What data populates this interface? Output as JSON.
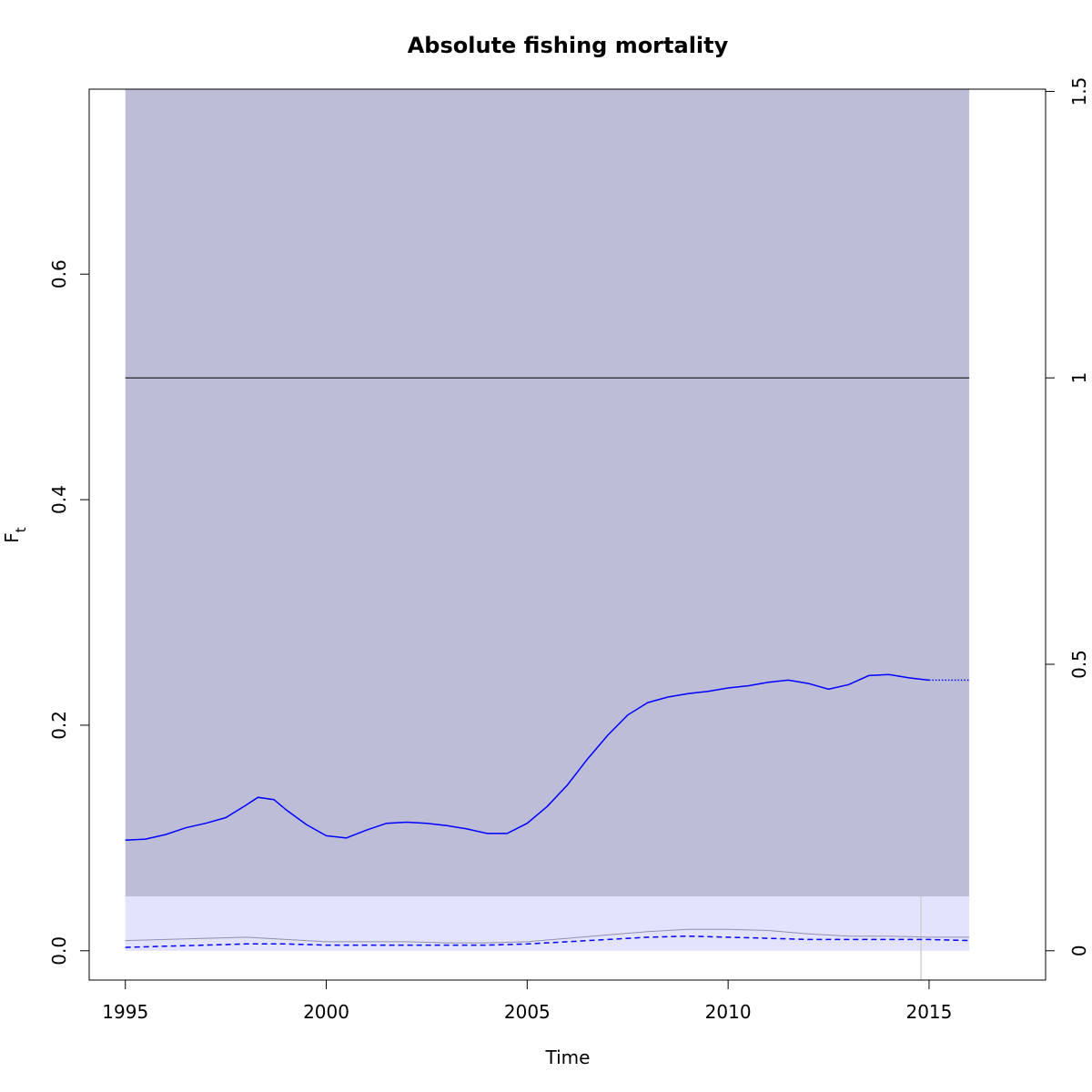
{
  "chart_data": {
    "type": "line",
    "title": "Absolute fishing mortality",
    "xlabel": "Time",
    "ylabel": {
      "main": "F",
      "subscript": "t"
    },
    "xlim": [
      1994.1,
      2017.9
    ],
    "ylim": [
      -0.026,
      0.764
    ],
    "x_ticks": [
      {
        "value": 1995,
        "label": "1995"
      },
      {
        "value": 2000,
        "label": "2000"
      },
      {
        "value": 2005,
        "label": "2005"
      },
      {
        "value": 2010,
        "label": "2010"
      },
      {
        "value": 2015,
        "label": "2015"
      }
    ],
    "y_ticks": [
      {
        "value": 0.0,
        "label": "0.0"
      },
      {
        "value": 0.2,
        "label": "0.2"
      },
      {
        "value": 0.4,
        "label": "0.4"
      },
      {
        "value": 0.6,
        "label": "0.6"
      }
    ],
    "right_axis": {
      "scale_factor": 0.508,
      "ticks": [
        {
          "value": 0,
          "label": "0"
        },
        {
          "value": 0.5,
          "label": "0.5"
        },
        {
          "value": 1,
          "label": "1"
        },
        {
          "value": 1.5,
          "label": "1.5"
        }
      ]
    },
    "outer_band": {
      "x": [
        1995,
        2016
      ],
      "lower": 0.048,
      "upper": 0.764,
      "color": "#bdbdd8"
    },
    "inner_band": {
      "x": [
        1995,
        2016
      ],
      "lower": 0.0,
      "upper": 0.048,
      "color": "#e3e3fd"
    },
    "reference_line": {
      "y": 0.508,
      "color": "#000000"
    },
    "vertical_line": {
      "x": 2014.8,
      "color": "#d0d0d0"
    },
    "series": [
      {
        "style": "solid",
        "color": "#0000ff",
        "x": [
          1995,
          1995.5,
          1996,
          1996.5,
          1997,
          1997.5,
          1998,
          1998.3,
          1998.7,
          1999,
          1999.5,
          2000,
          2000.5,
          2001,
          2001.5,
          2002,
          2002.5,
          2003,
          2003.5,
          2004,
          2004.5,
          2005,
          2005.5,
          2006,
          2006.5,
          2007,
          2007.5,
          2008,
          2008.5,
          2009,
          2009.5,
          2010,
          2010.5,
          2011,
          2011.5,
          2012,
          2012.5,
          2013,
          2013.5,
          2014,
          2014.5,
          2015
        ],
        "y": [
          0.098,
          0.099,
          0.103,
          0.109,
          0.113,
          0.118,
          0.129,
          0.136,
          0.134,
          0.125,
          0.112,
          0.102,
          0.1,
          0.107,
          0.113,
          0.114,
          0.113,
          0.111,
          0.108,
          0.104,
          0.104,
          0.113,
          0.128,
          0.147,
          0.17,
          0.191,
          0.209,
          0.22,
          0.225,
          0.228,
          0.23,
          0.233,
          0.235,
          0.238,
          0.24,
          0.237,
          0.232,
          0.236,
          0.244,
          0.245,
          0.242,
          0.24
        ]
      },
      {
        "style": "dotted",
        "color": "#0000ff",
        "x": [
          2015,
          2016
        ],
        "y": [
          0.24,
          0.24
        ]
      },
      {
        "style": "dashed",
        "color": "#0000ff",
        "x": [
          1995,
          1996,
          1997,
          1998,
          1999,
          2000,
          2001,
          2002,
          2003,
          2004,
          2005,
          2006,
          2007,
          2008,
          2009,
          2010,
          2011,
          2012,
          2013,
          2014,
          2015,
          2016
        ],
        "y": [
          0.003,
          0.004,
          0.005,
          0.006,
          0.006,
          0.005,
          0.005,
          0.005,
          0.005,
          0.005,
          0.006,
          0.008,
          0.01,
          0.012,
          0.013,
          0.012,
          0.011,
          0.01,
          0.01,
          0.01,
          0.01,
          0.009
        ]
      },
      {
        "style": "thin",
        "color": "#9090b0",
        "x": [
          1995,
          1996,
          1997,
          1998,
          1999,
          2000,
          2001,
          2002,
          2003,
          2004,
          2005,
          2006,
          2007,
          2008,
          2009,
          2010,
          2011,
          2012,
          2013,
          2014,
          2015,
          2016
        ],
        "y": [
          0.009,
          0.01,
          0.011,
          0.012,
          0.01,
          0.008,
          0.008,
          0.008,
          0.007,
          0.007,
          0.008,
          0.011,
          0.014,
          0.017,
          0.019,
          0.019,
          0.018,
          0.015,
          0.013,
          0.013,
          0.012,
          0.012
        ]
      }
    ],
    "grid": false,
    "legend": "none"
  }
}
